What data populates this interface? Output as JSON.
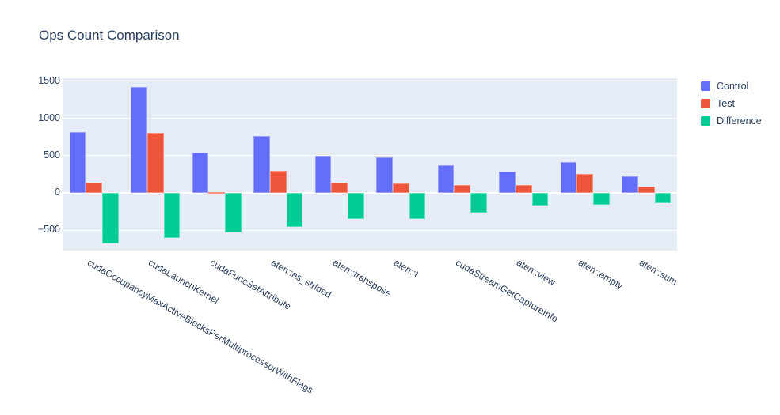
{
  "title": "Ops Count Comparison",
  "colors": {
    "text": "#2A3F5F",
    "plot_background": "#E5ECF6",
    "gridline": "#FFFFFF",
    "paper": "#FFFFFF",
    "control": "#636EFA",
    "test": "#EF553B",
    "difference": "#00CC96"
  },
  "chart_data": {
    "type": "bar",
    "title": "Ops Count Comparison",
    "categories": [
      "cudaOccupancyMaxActiveBlocksPerMultiprocessorWithFlags",
      "cudaLaunchKernel",
      "cudaFuncSetAttribute",
      "aten::as_strided",
      "aten::transpose",
      "aten::t",
      "cudaStreamGetCaptureInfo",
      "aten::view",
      "aten::empty",
      "aten::sum"
    ],
    "series": [
      {
        "name": "Control",
        "color": "#636EFA",
        "values": [
          815,
          1415,
          540,
          755,
          490,
          475,
          370,
          280,
          410,
          215
        ]
      },
      {
        "name": "Test",
        "color": "#EF553B",
        "values": [
          130,
          805,
          5,
          290,
          130,
          125,
          105,
          100,
          250,
          75
        ]
      },
      {
        "name": "Difference",
        "color": "#00CC96",
        "values": [
          -685,
          -610,
          -535,
          -465,
          -360,
          -350,
          -265,
          -180,
          -160,
          -140
        ]
      }
    ],
    "yticks": [
      -500,
      0,
      500,
      1000,
      1500
    ],
    "ytick_labels": [
      "−500",
      "0",
      "500",
      "1000",
      "1500"
    ],
    "ylim": [
      -780,
      1535
    ],
    "xlabel": "",
    "ylabel": "",
    "grid": true,
    "legend_position": "right-top",
    "x_tick_angle": 30
  }
}
